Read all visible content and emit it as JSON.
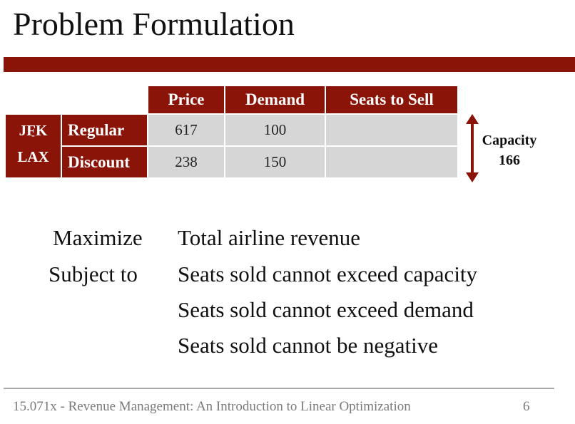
{
  "slide": {
    "title": "Problem Formulation"
  },
  "table": {
    "headers": [
      "Price",
      "Demand",
      "Seats to Sell"
    ],
    "route": {
      "from": "JFK",
      "separator": "-",
      "to": "LAX"
    },
    "rows": [
      {
        "label": "Regular",
        "price": "617",
        "demand": "100",
        "seats": ""
      },
      {
        "label": "Discount",
        "price": "238",
        "demand": "150",
        "seats": ""
      }
    ],
    "capacity": {
      "label": "Capacity",
      "value": "166"
    }
  },
  "formulation": {
    "maximize_label": "Maximize",
    "objective": "Total airline revenue",
    "subject_to_label": "Subject to",
    "constraints": [
      "Seats sold cannot exceed capacity",
      "Seats sold cannot exceed demand",
      "Seats sold cannot be negative"
    ]
  },
  "footer": {
    "course": "15.071x - Revenue Management: An Introduction to Linear Optimization",
    "page_number": "6"
  },
  "colors": {
    "accent": "#8b1408",
    "cell": "#d6d6d6"
  }
}
